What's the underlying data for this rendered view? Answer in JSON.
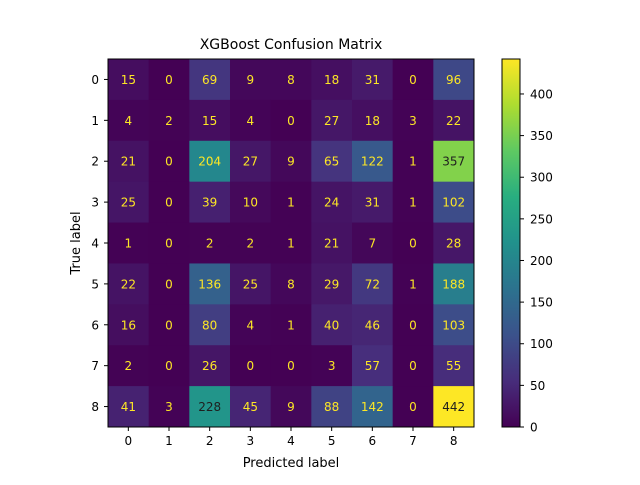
{
  "chart_data": {
    "type": "heatmap",
    "title": "XGBoost Confusion Matrix",
    "xlabel": "Predicted label",
    "ylabel": "True label",
    "x_categories": [
      "0",
      "1",
      "2",
      "3",
      "4",
      "5",
      "6",
      "7",
      "8"
    ],
    "y_categories": [
      "0",
      "1",
      "2",
      "3",
      "4",
      "5",
      "6",
      "7",
      "8"
    ],
    "matrix": [
      [
        15,
        0,
        69,
        9,
        8,
        18,
        31,
        0,
        96
      ],
      [
        4,
        2,
        15,
        4,
        0,
        27,
        18,
        3,
        22
      ],
      [
        21,
        0,
        204,
        27,
        9,
        65,
        122,
        1,
        357
      ],
      [
        25,
        0,
        39,
        10,
        1,
        24,
        31,
        1,
        102
      ],
      [
        1,
        0,
        2,
        2,
        1,
        21,
        7,
        0,
        28
      ],
      [
        22,
        0,
        136,
        25,
        8,
        29,
        72,
        1,
        188
      ],
      [
        16,
        0,
        80,
        4,
        1,
        40,
        46,
        0,
        103
      ],
      [
        2,
        0,
        26,
        0,
        0,
        3,
        57,
        0,
        55
      ],
      [
        41,
        3,
        228,
        45,
        9,
        88,
        142,
        0,
        442
      ]
    ],
    "colormap": "viridis",
    "vmin": 0,
    "vmax": 442,
    "colorbar_ticks": [
      0,
      50,
      100,
      150,
      200,
      250,
      300,
      350,
      400
    ],
    "grid": false,
    "colors": {
      "label_light": "#fde725",
      "label_dark": "#1f1f1f",
      "axis": "#000000"
    }
  }
}
